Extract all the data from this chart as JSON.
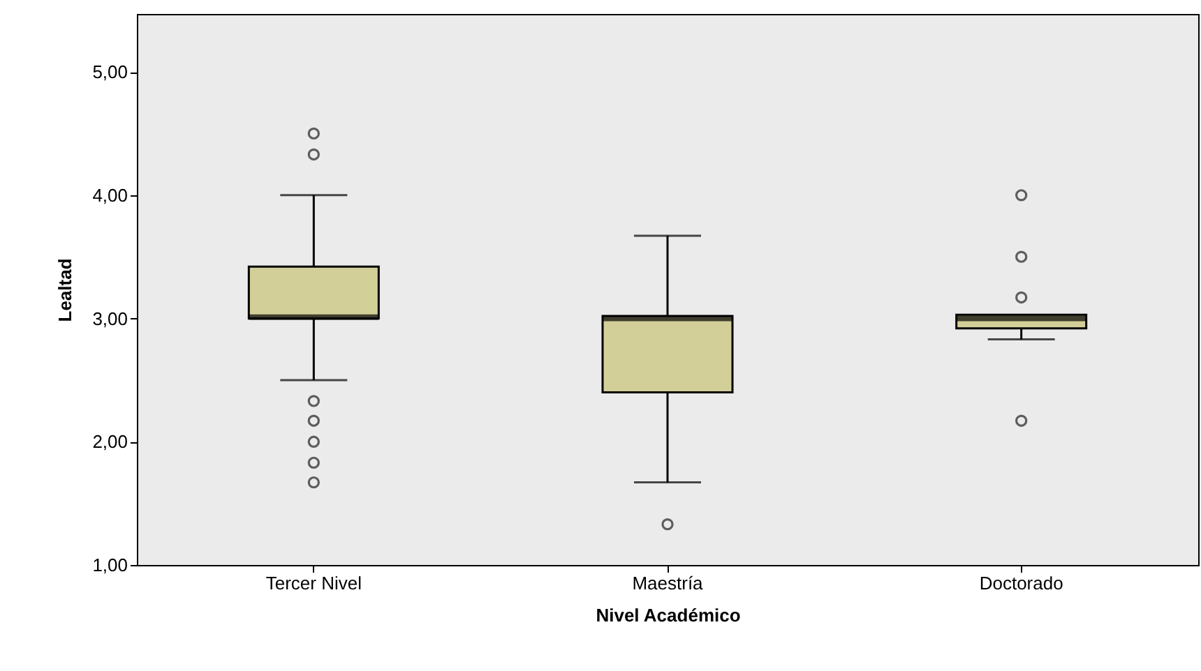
{
  "chart_data": {
    "type": "box",
    "xlabel": "Nivel Académico",
    "ylabel": "Lealtad",
    "categories": [
      "Tercer Nivel",
      "Maestría",
      "Doctorado"
    ],
    "series": [
      {
        "color": "#d3cf98",
        "boxes": [
          {
            "low": 2.5,
            "q1": 3.0,
            "median": 3.01,
            "q3": 3.42,
            "high": 4.0,
            "outliers": [
              4.5,
              4.33,
              2.33,
              2.17,
              2.0,
              1.83,
              1.67
            ]
          },
          {
            "low": 1.67,
            "q1": 2.4,
            "median": 3.0,
            "q3": 3.02,
            "high": 3.67,
            "outliers": [
              1.33
            ]
          },
          {
            "low": 2.83,
            "q1": 2.92,
            "median": 3.0,
            "q3": 3.03,
            "high": 3.03,
            "outliers": [
              4.0,
              3.5,
              3.17,
              2.17
            ]
          }
        ]
      }
    ],
    "ylim": [
      1,
      5.47
    ],
    "yticks": [
      {
        "value": 1,
        "label": "1,00"
      },
      {
        "value": 2,
        "label": "2,00"
      },
      {
        "value": 3,
        "label": "3,00"
      },
      {
        "value": 4,
        "label": "4,00"
      },
      {
        "value": 5,
        "label": "5,00"
      }
    ],
    "grid": false,
    "marker": "circle"
  }
}
